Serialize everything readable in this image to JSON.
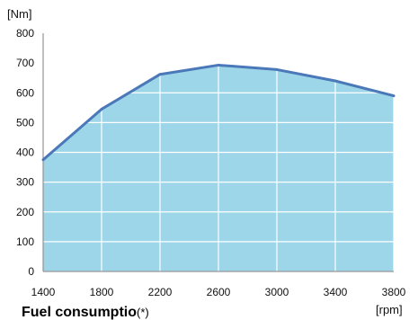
{
  "colors": {
    "fill": "#9dd6e8",
    "line": "#4a78b8",
    "grid": "#ffffff",
    "axis": "#7f7f7f"
  },
  "chart_data": {
    "type": "area",
    "x": [
      1400,
      1800,
      2200,
      2600,
      3000,
      3400,
      3800
    ],
    "values": [
      375,
      545,
      662,
      693,
      678,
      640,
      590
    ],
    "xlim": [
      1400,
      3800
    ],
    "ylim": [
      0,
      800
    ],
    "xticks": [
      "1400",
      "1800",
      "2200",
      "2600",
      "3000",
      "3400",
      "3800"
    ],
    "yticks": [
      "0",
      "100",
      "200",
      "300",
      "400",
      "500",
      "600",
      "700",
      "800"
    ],
    "ylabel": "[Nm]",
    "xlabel": "[rpm]",
    "grid": true
  },
  "footer": {
    "fuel_label": "Fuel consumptio",
    "fuel_suffix": "(*)"
  }
}
